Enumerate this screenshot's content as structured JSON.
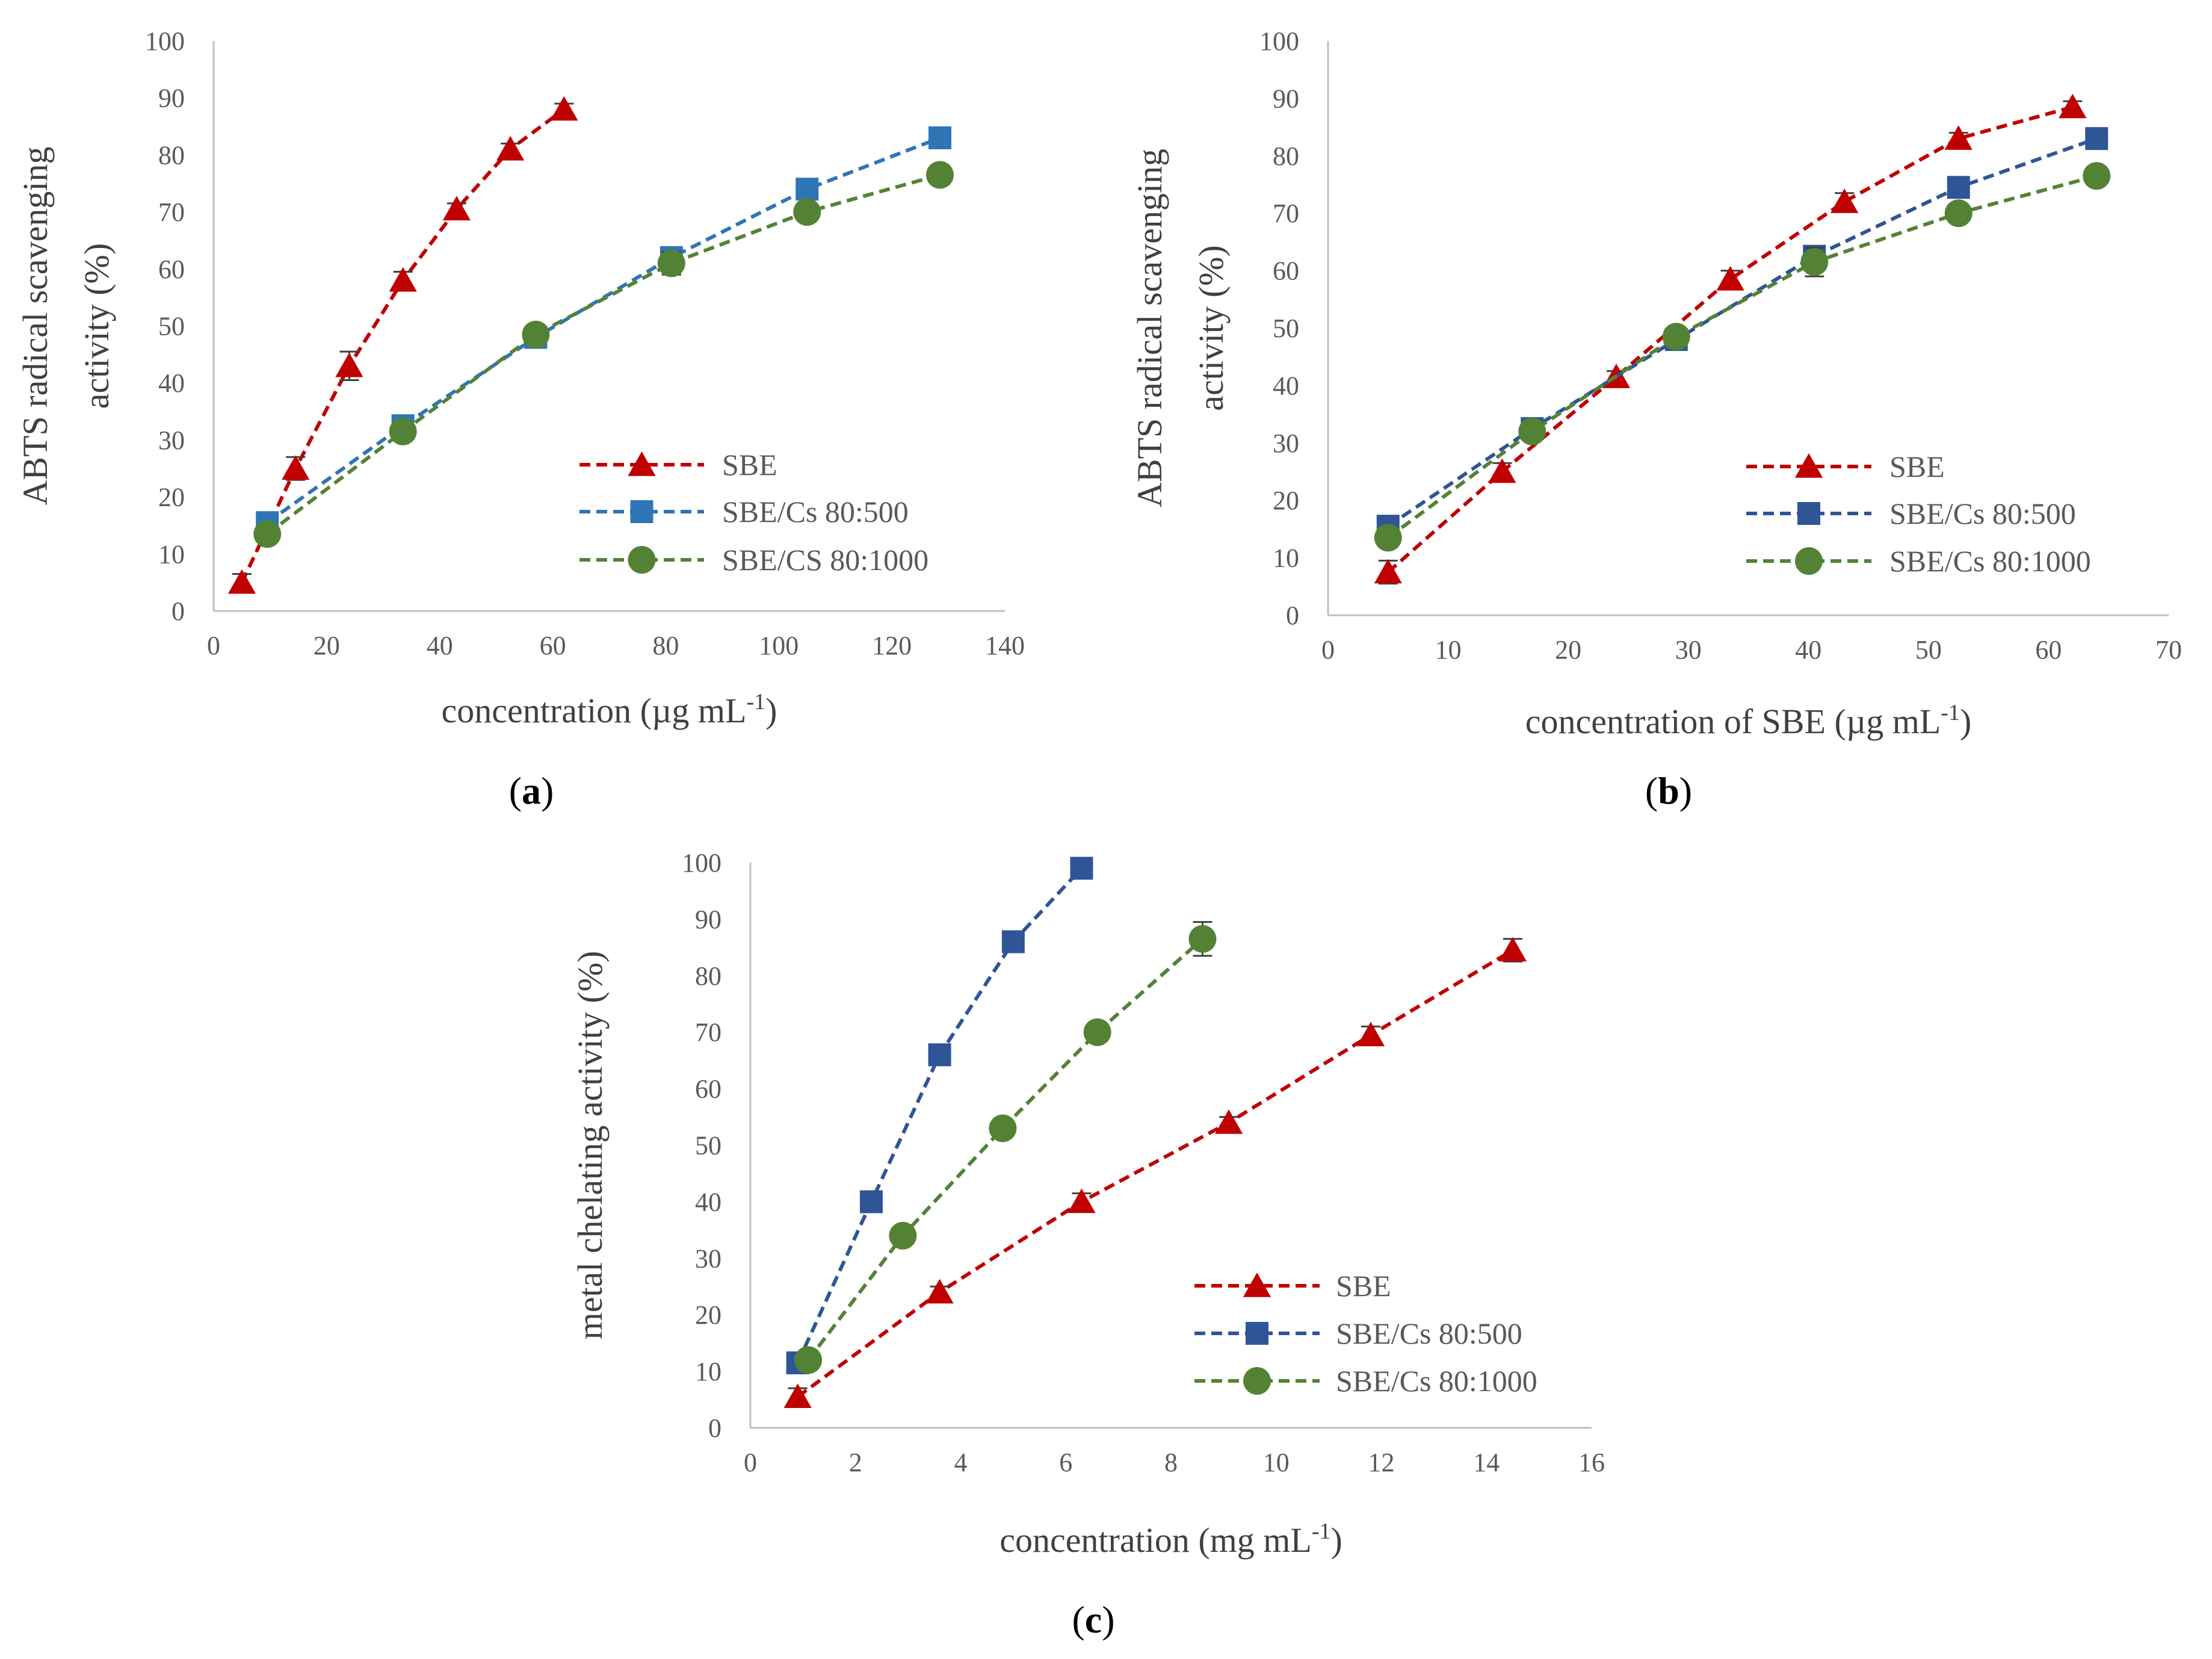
{
  "chart_data": [
    {
      "id": "a",
      "type": "line",
      "panel_label": "a",
      "xlabel": "concentration (µg mL",
      "xlabel_sup": "-1",
      "xlabel_end": ")",
      "ylabel_lines": [
        "ABTS radical scavenging",
        "activity (%)"
      ],
      "xlim": [
        0,
        140
      ],
      "ylim": [
        0,
        100
      ],
      "xticks": [
        0,
        20,
        40,
        60,
        80,
        100,
        120,
        140
      ],
      "yticks": [
        0,
        10,
        20,
        30,
        40,
        50,
        60,
        70,
        80,
        90,
        100
      ],
      "legend_position": "bottom-right",
      "series": [
        {
          "name": "SBE",
          "color": "#c00000",
          "marker": "triangle",
          "x": [
            5,
            14.5,
            24,
            33.5,
            43,
            52.5,
            62
          ],
          "y": [
            5,
            25,
            43,
            58,
            70.5,
            81,
            88
          ],
          "err": [
            1.5,
            2,
            2.5,
            1.5,
            1,
            1,
            1
          ]
        },
        {
          "name": "SBE/Cs 80:500",
          "color": "#2e75b6",
          "marker": "square",
          "x": [
            9.5,
            33.5,
            57,
            81,
            105,
            128.5
          ],
          "y": [
            15.5,
            32.5,
            48,
            62,
            74,
            83
          ],
          "err": [
            1,
            1,
            1,
            1.5,
            1,
            1
          ]
        },
        {
          "name": "SBE/CS 80:1000",
          "color": "#548235",
          "marker": "circle",
          "x": [
            9.5,
            33.5,
            57,
            81,
            105,
            128.5
          ],
          "y": [
            13.5,
            31.5,
            48.5,
            61,
            70,
            76.5
          ],
          "err": [
            1.5,
            1,
            1,
            2,
            1,
            1
          ]
        }
      ]
    },
    {
      "id": "b",
      "type": "line",
      "panel_label": "b",
      "xlabel": "concentration of SBE (µg mL",
      "xlabel_sup": "-1",
      "xlabel_end": ")",
      "ylabel_lines": [
        "ABTS radical scavenging",
        "activity (%)"
      ],
      "xlim": [
        0,
        70
      ],
      "ylim": [
        0,
        100
      ],
      "xticks": [
        0,
        10,
        20,
        30,
        40,
        50,
        60,
        70
      ],
      "yticks": [
        0,
        10,
        20,
        30,
        40,
        50,
        60,
        70,
        80,
        90,
        100
      ],
      "legend_position": "bottom-right",
      "series": [
        {
          "name": "SBE",
          "color": "#c00000",
          "marker": "triangle",
          "x": [
            5,
            14.5,
            24,
            33.5,
            43,
            52.5,
            62
          ],
          "y": [
            7.5,
            25,
            41.5,
            58.5,
            72,
            83,
            88.5
          ],
          "err": [
            2,
            1.5,
            1,
            1.5,
            1.5,
            1,
            1
          ]
        },
        {
          "name": "SBE/Cs 80:500",
          "color": "#2f5597",
          "marker": "square",
          "x": [
            5,
            17,
            29,
            40.5,
            52.5,
            64
          ],
          "y": [
            15.5,
            32.5,
            48,
            62.5,
            74.5,
            83
          ],
          "err": [
            1,
            1,
            1,
            1,
            1,
            1
          ]
        },
        {
          "name": "SBE/Cs 80:1000",
          "color": "#548235",
          "marker": "circle",
          "x": [
            5,
            17,
            29,
            40.5,
            52.5,
            64
          ],
          "y": [
            13.5,
            32,
            48.5,
            61.5,
            70,
            76.5
          ],
          "err": [
            1,
            1,
            1,
            2.5,
            1,
            1
          ]
        }
      ]
    },
    {
      "id": "c",
      "type": "line",
      "panel_label": "c",
      "xlabel": "concentration (mg mL",
      "xlabel_sup": "-1",
      "xlabel_end": ")",
      "ylabel_lines": [
        "metal chelating activity (%)"
      ],
      "xlim": [
        0,
        16
      ],
      "ylim": [
        0,
        100
      ],
      "xticks": [
        0,
        2,
        4,
        6,
        8,
        10,
        12,
        14,
        16
      ],
      "yticks": [
        0,
        10,
        20,
        30,
        40,
        50,
        60,
        70,
        80,
        90,
        100
      ],
      "legend_position": "bottom-right",
      "series": [
        {
          "name": "SBE",
          "color": "#c00000",
          "marker": "triangle",
          "x": [
            0.9,
            3.6,
            6.3,
            9.1,
            11.8,
            14.5
          ],
          "y": [
            5.5,
            24,
            40,
            54,
            69.5,
            84.5
          ],
          "err": [
            1.5,
            1,
            1.5,
            1,
            1.5,
            2
          ]
        },
        {
          "name": "SBE/Cs 80:500",
          "color": "#2f5597",
          "marker": "square",
          "x": [
            0.9,
            2.3,
            3.6,
            5.0,
            6.3
          ],
          "y": [
            11.5,
            40,
            66,
            86,
            99
          ],
          "err": [
            1,
            1,
            1,
            1,
            1
          ]
        },
        {
          "name": "SBE/Cs 80:1000",
          "color": "#548235",
          "marker": "circle",
          "x": [
            1.1,
            2.9,
            4.8,
            6.6,
            8.6
          ],
          "y": [
            12,
            34,
            53,
            70,
            86.5
          ],
          "err": [
            1,
            1,
            1.5,
            1,
            3
          ]
        }
      ]
    }
  ]
}
